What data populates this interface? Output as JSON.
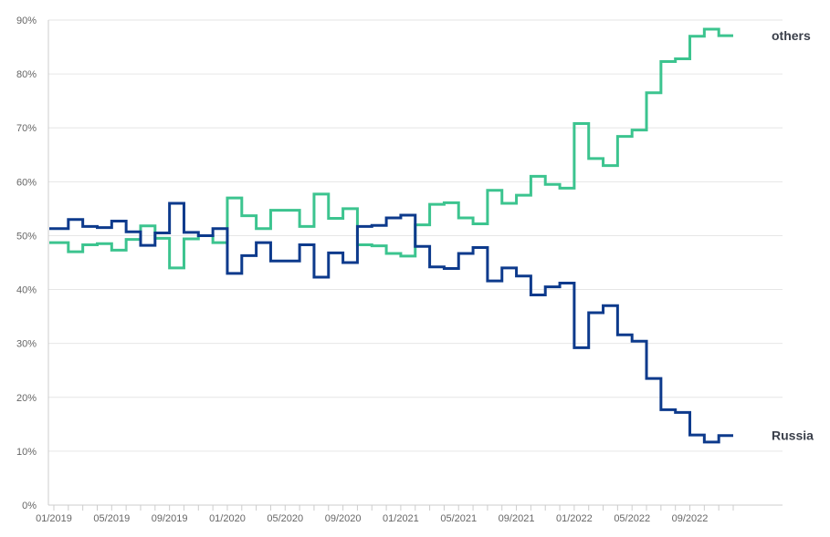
{
  "chart_data": {
    "type": "line",
    "step": true,
    "grid": true,
    "x_tick_labels": [
      "01/2019",
      "05/2019",
      "09/2019",
      "01/2020",
      "05/2020",
      "09/2020",
      "01/2021",
      "05/2021",
      "09/2021",
      "01/2022",
      "05/2022",
      "09/2022"
    ],
    "y_tick_labels": [
      "0%",
      "10%",
      "20%",
      "30%",
      "40%",
      "50%",
      "60%",
      "70%",
      "80%",
      "90%"
    ],
    "ylim": [
      0,
      90
    ],
    "x_start": "01/2019",
    "x_end": "11/2022",
    "series": [
      {
        "name": "others",
        "color": "#3cc48f",
        "values": [
          48.7,
          47.0,
          48.3,
          48.5,
          47.3,
          49.3,
          51.8,
          49.5,
          44.0,
          49.4,
          50.0,
          48.7,
          57.0,
          53.7,
          51.3,
          54.7,
          54.7,
          51.7,
          57.7,
          53.2,
          55.0,
          48.3,
          48.1,
          46.7,
          46.2,
          52.0,
          55.8,
          56.1,
          53.3,
          52.2,
          58.4,
          56.0,
          57.5,
          61.0,
          59.5,
          58.8,
          70.8,
          64.3,
          63.0,
          68.4,
          69.6,
          76.5,
          82.3,
          82.8,
          87.0,
          88.3,
          87.1
        ]
      },
      {
        "name": "Russia",
        "color": "#0d3a8c",
        "values": [
          51.3,
          53.0,
          51.7,
          51.5,
          52.7,
          50.7,
          48.2,
          50.5,
          56.0,
          50.6,
          50.0,
          51.3,
          43.0,
          46.3,
          48.7,
          45.3,
          45.3,
          48.3,
          42.3,
          46.8,
          45.0,
          51.7,
          51.9,
          53.3,
          53.8,
          48.0,
          44.2,
          43.9,
          46.7,
          47.8,
          41.6,
          44.0,
          42.5,
          39.0,
          40.5,
          41.2,
          29.2,
          35.7,
          37.0,
          31.6,
          30.4,
          23.5,
          17.7,
          17.2,
          13.0,
          11.7,
          12.9
        ]
      }
    ]
  }
}
